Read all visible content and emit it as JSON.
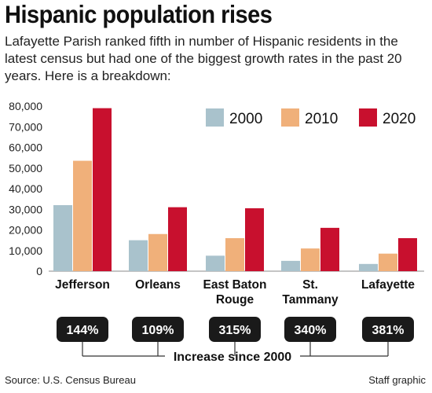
{
  "title": "Hispanic population rises",
  "subtitle": "Lafayette Parish ranked fifth in number of Hispanic residents in the latest census but had one of the biggest growth rates in the past 20 years. Here is a breakdown:",
  "source": "Source: U.S. Census Bureau",
  "credit": "Staff graphic",
  "colors": {
    "2000": "#a9c2cc",
    "2010": "#f0b07a",
    "2020": "#c8102e",
    "badge": "#1a1a1a"
  },
  "chart_data": {
    "type": "bar",
    "categories": [
      [
        "Jefferson"
      ],
      [
        "Orleans"
      ],
      [
        "East Baton",
        "Rouge"
      ],
      [
        "St.",
        "Tammany"
      ],
      [
        "Lafayette"
      ]
    ],
    "series": [
      {
        "name": "2000",
        "values": [
          32000,
          15000,
          7500,
          5000,
          3500
        ]
      },
      {
        "name": "2010",
        "values": [
          53500,
          18000,
          16000,
          11000,
          8500
        ]
      },
      {
        "name": "2020",
        "values": [
          79000,
          31000,
          30500,
          21000,
          16000
        ]
      }
    ],
    "ylim": [
      0,
      80000
    ],
    "yticks": [
      "0",
      "10,000",
      "20,000",
      "30,000",
      "40,000",
      "50,000",
      "60,000",
      "70,000",
      "80,000"
    ],
    "legend_position": "top-right",
    "increase_label": "Increase since 2000",
    "increases": [
      "144%",
      "109%",
      "315%",
      "340%",
      "381%"
    ]
  }
}
